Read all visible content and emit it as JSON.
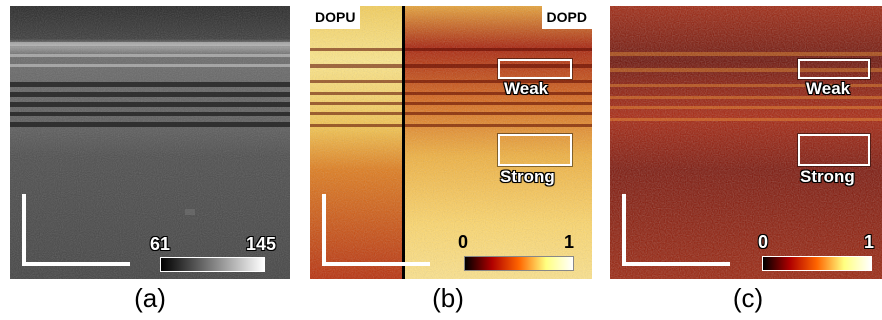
{
  "figure": {
    "panels": [
      {
        "caption": "(a)",
        "colorbar": {
          "min_label": "61",
          "max_label": "145",
          "colors": [
            "#000000",
            "#ffffff"
          ]
        }
      },
      {
        "caption": "(b)",
        "left_label": "DOPU",
        "right_label": "DOPD",
        "roi_labels": [
          "Weak",
          "Strong"
        ],
        "colorbar": {
          "min_label": "0",
          "max_label": "1",
          "colors": [
            "#000000",
            "#b00000",
            "#ff6600",
            "#ffff80",
            "#ffffff"
          ]
        }
      },
      {
        "caption": "(c)",
        "roi_labels": [
          "Weak",
          "Strong"
        ],
        "colorbar": {
          "min_label": "0",
          "max_label": "1",
          "colors": [
            "#000000",
            "#b00000",
            "#ff6600",
            "#ffff80",
            "#ffffff"
          ]
        }
      }
    ]
  }
}
